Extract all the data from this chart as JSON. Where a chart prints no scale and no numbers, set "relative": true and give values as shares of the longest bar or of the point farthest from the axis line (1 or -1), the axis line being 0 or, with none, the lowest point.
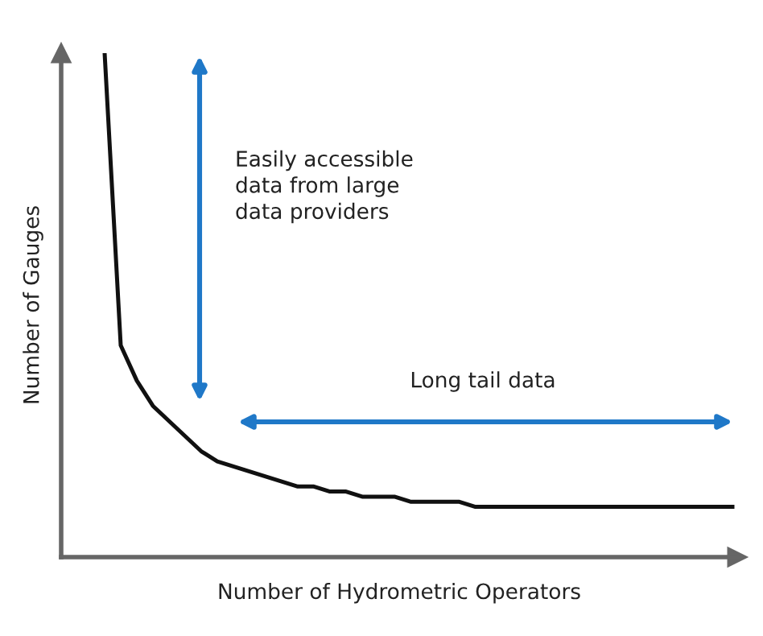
{
  "chart_data": {
    "type": "line",
    "relative": true,
    "xlabel": "Number of Hydrometric Operators",
    "ylabel": "Number of Gauges",
    "categories": [
      null,
      null,
      null,
      null,
      null,
      null,
      null,
      null,
      null,
      null,
      null,
      null,
      null,
      null,
      null,
      null,
      null,
      null,
      null,
      null,
      null,
      null,
      null,
      null,
      null,
      null,
      null,
      null,
      null,
      null,
      null,
      null,
      null,
      null,
      null,
      null,
      null,
      null,
      null,
      null
    ],
    "series": [
      {
        "color": "#111111",
        "values": [
          1.0,
          0.42,
          0.35,
          0.3,
          0.27,
          0.24,
          0.21,
          0.19,
          0.18,
          0.17,
          0.16,
          0.15,
          0.14,
          0.14,
          0.13,
          0.13,
          0.12,
          0.12,
          0.12,
          0.11,
          0.11,
          0.11,
          0.11,
          0.1,
          0.1,
          0.1,
          0.1,
          0.1,
          0.1,
          0.1,
          0.1,
          0.1,
          0.1,
          0.1,
          0.1,
          0.1,
          0.1,
          0.1,
          0.1,
          0.1
        ]
      }
    ],
    "annotations": [
      "Easily accessible\ndata from large\ndata providers",
      "Long tail data"
    ],
    "grid": false,
    "legend": false,
    "marker": "none",
    "line_style": "solid"
  }
}
